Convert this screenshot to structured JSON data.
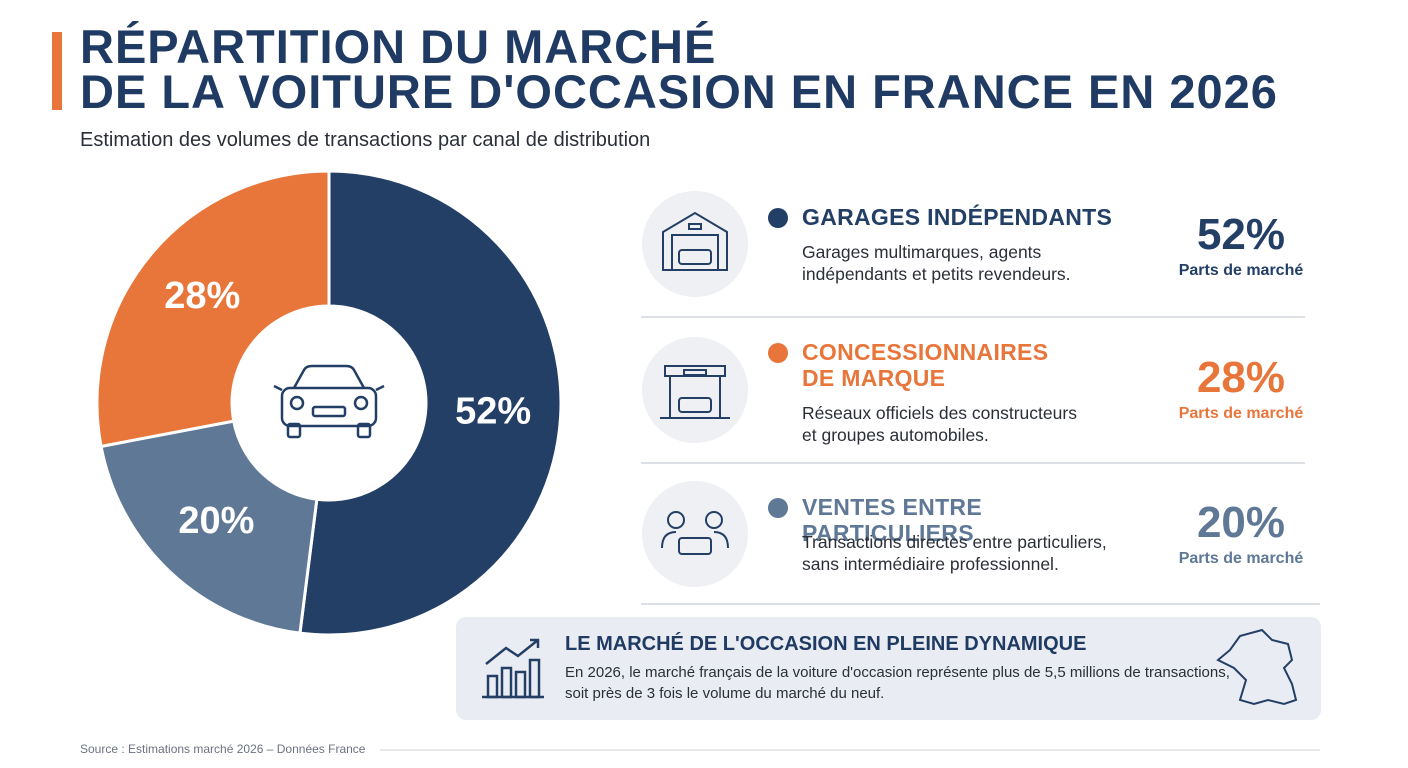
{
  "chart_data": {
    "type": "pie",
    "donut": true,
    "title": [
      "RÉPARTITION DU MARCHÉ",
      "DE LA VOITURE D'OCCASION EN FRANCE EN 2026"
    ],
    "subtitle": "Estimation des volumes de transactions par canal de distribution",
    "categories": [
      "GARAGES INDÉPENDANTS",
      "CONCESSIONNAIRES DE MARQUE",
      "VENTES ENTRE PARTICULIERS"
    ],
    "values": [
      52,
      28,
      20
    ],
    "value_labels": [
      "52%",
      "28%",
      "20%"
    ],
    "colors": [
      "#233f66",
      "#e8763a",
      "#5f7896"
    ],
    "descriptions": [
      [
        "Garages multimarques, agents",
        "indépendants et petits revendeurs."
      ],
      [
        "Réseaux officiels des constructeurs",
        "et groupes automobiles."
      ],
      [
        "Transactions directes entre particuliers,",
        "sans intermédiaire professionnel."
      ]
    ],
    "share_caption": "Parts de marché"
  },
  "callout": {
    "title": "LE MARCHÉ DE L'OCCASION EN PLEINE DYNAMIQUE",
    "text": [
      "En 2026, le marché français de la voiture d'occasion représente plus de 5,5 millions de transactions,",
      "soit près de 3 fois le volume du marché du neuf."
    ]
  },
  "source": "Source : Estimations marché 2026 – Données France"
}
